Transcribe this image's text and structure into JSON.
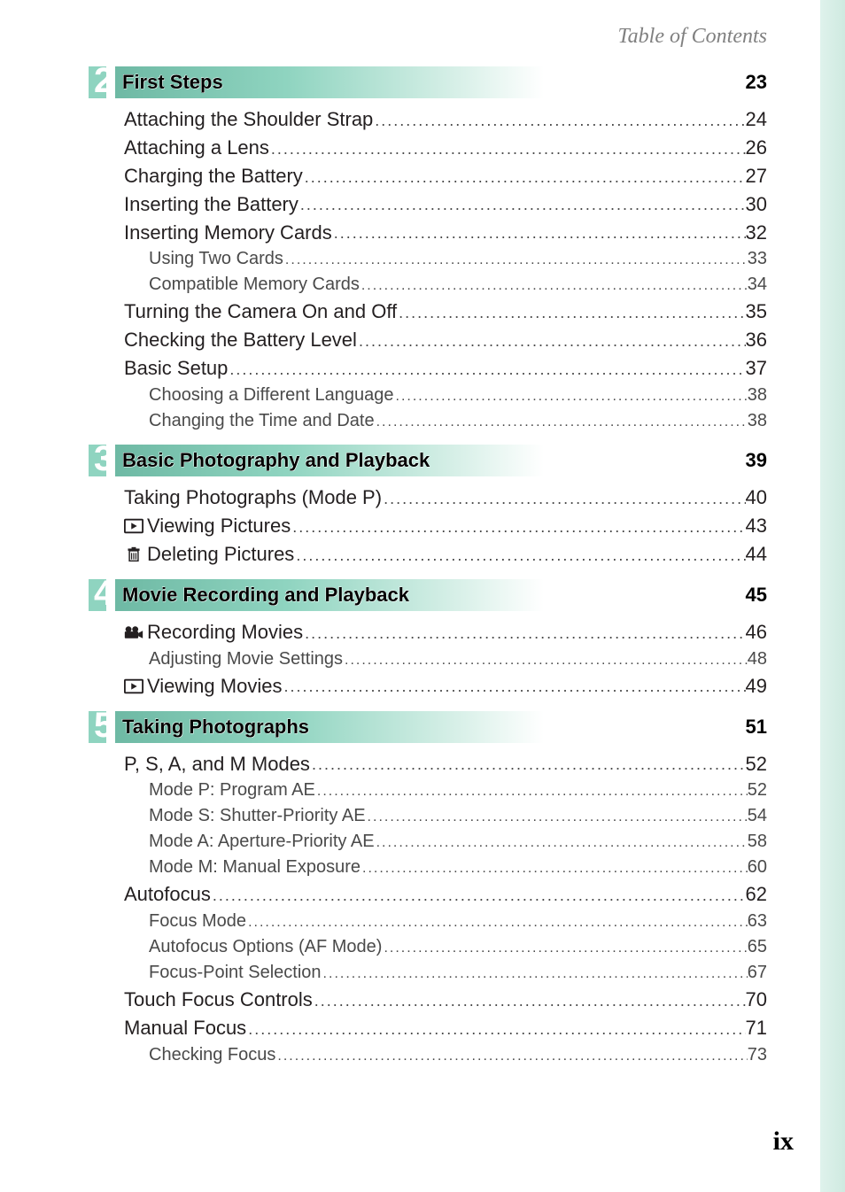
{
  "header": {
    "text": "Table of Contents"
  },
  "footer": {
    "page_label": "ix"
  },
  "colors": {
    "accent": "#8fd4c0",
    "right_bar_from": "#dff2ec",
    "right_bar_to": "#cfeae0",
    "text": "#231f20",
    "muted": "#4a4a4a"
  },
  "sections": [
    {
      "number": "2",
      "title": "First Steps",
      "page": "23",
      "entries": [
        {
          "level": 1,
          "label": "Attaching the Shoulder Strap",
          "page": "24"
        },
        {
          "level": 1,
          "label": "Attaching a Lens",
          "page": "26"
        },
        {
          "level": 1,
          "label": "Charging the Battery",
          "page": "27"
        },
        {
          "level": 1,
          "label": "Inserting the Battery",
          "page": "30"
        },
        {
          "level": 1,
          "label": "Inserting Memory Cards",
          "page": "32"
        },
        {
          "level": 2,
          "label": "Using Two Cards",
          "page": "33"
        },
        {
          "level": 2,
          "label": "Compatible Memory Cards",
          "page": "34"
        },
        {
          "level": 1,
          "label": "Turning the Camera On and Off",
          "page": "35"
        },
        {
          "level": 1,
          "label": "Checking the Battery Level",
          "page": "36"
        },
        {
          "level": 1,
          "label": "Basic Setup",
          "page": "37"
        },
        {
          "level": 2,
          "label": "Choosing a Different Language",
          "page": "38"
        },
        {
          "level": 2,
          "label": "Changing the Time and Date",
          "page": "38"
        }
      ]
    },
    {
      "number": "3",
      "title": "Basic Photography and Playback",
      "page": "39",
      "entries": [
        {
          "level": 1,
          "label": "Taking Photographs (Mode P)",
          "page": "40"
        },
        {
          "level": 1,
          "icon": "play",
          "label": "Viewing Pictures",
          "page": "43"
        },
        {
          "level": 1,
          "icon": "trash",
          "label": "Deleting Pictures",
          "page": "44"
        }
      ]
    },
    {
      "number": "4",
      "title": "Movie Recording and Playback",
      "page": "45",
      "entries": [
        {
          "level": 1,
          "icon": "movie",
          "label": "Recording Movies",
          "page": "46"
        },
        {
          "level": 2,
          "label": "Adjusting Movie Settings",
          "page": "48"
        },
        {
          "level": 1,
          "icon": "play",
          "label": "Viewing Movies",
          "page": "49"
        }
      ]
    },
    {
      "number": "5",
      "title": "Taking Photographs",
      "page": "51",
      "entries": [
        {
          "level": 1,
          "label": "P, S, A, and M Modes",
          "page": "52"
        },
        {
          "level": 2,
          "label": "Mode P: Program AE",
          "page": "52"
        },
        {
          "level": 2,
          "label": "Mode S: Shutter-Priority AE",
          "page": "54"
        },
        {
          "level": 2,
          "label": "Mode A: Aperture-Priority AE",
          "page": "58"
        },
        {
          "level": 2,
          "label": "Mode M: Manual Exposure",
          "page": "60"
        },
        {
          "level": 1,
          "label": "Autofocus",
          "page": "62"
        },
        {
          "level": 2,
          "label": "Focus Mode",
          "page": "63"
        },
        {
          "level": 2,
          "label": "Autofocus Options (AF Mode)",
          "page": "65"
        },
        {
          "level": 2,
          "label": "Focus-Point Selection",
          "page": "67"
        },
        {
          "level": 1,
          "label": "Touch Focus Controls",
          "page": "70"
        },
        {
          "level": 1,
          "label": "Manual Focus",
          "page": "71"
        },
        {
          "level": 2,
          "label": "Checking Focus",
          "page": "73"
        }
      ]
    }
  ],
  "icons": {
    "play": "play-icon",
    "trash": "trash-icon",
    "movie": "movie-icon"
  }
}
